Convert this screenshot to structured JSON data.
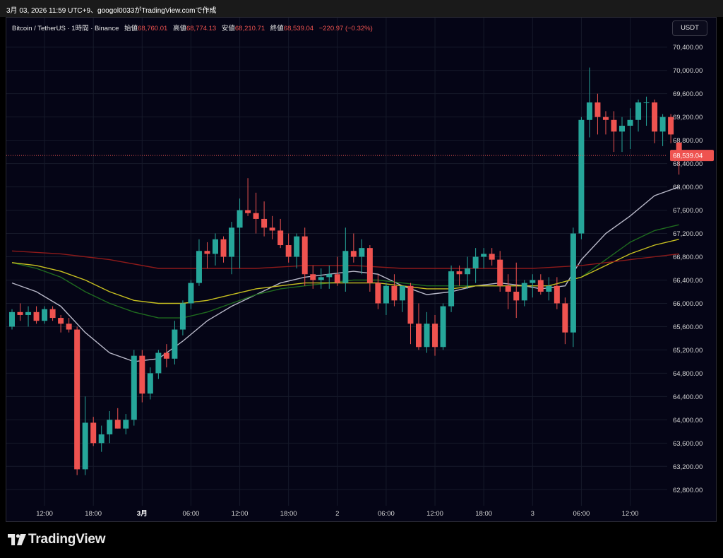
{
  "header": {
    "caption": "3月 03, 2026 11:59 UTC+9、googol0033がTradingView.comで作成"
  },
  "legend": {
    "symbol": "Bitcoin / TetherUS · 1時間 · Binance",
    "open_label": "始値",
    "open_value": "68,760.01",
    "high_label": "高値",
    "high_value": "68,774.13",
    "low_label": "安値",
    "low_value": "68,210.71",
    "close_label": "終値",
    "close_value": "68,539.04",
    "change": "−220.97 (−0.32%)"
  },
  "unit_button": "USDT",
  "footer": {
    "brand": "TradingView",
    "logo_icon": "tradingview-logo-icon"
  },
  "colors": {
    "up": "#26a69a",
    "down": "#ef5350",
    "ma_fast": "#b8b8c8",
    "ma_mid": "#1f6b1f",
    "ma_slow": "#c8c020",
    "ma_long": "#8e1a1a",
    "price_line": "#ef5350",
    "grid": "#161a2a"
  },
  "chart_data": {
    "type": "candlestick",
    "symbol": "Bitcoin / TetherUS",
    "interval": "1時間",
    "exchange": "Binance",
    "currency": "USDT",
    "ylim": [
      62500,
      70700
    ],
    "y_ticks": [
      "70,400.00",
      "70,000.00",
      "69,600.00",
      "69,200.00",
      "68,800.00",
      "68,400.00",
      "68,000.00",
      "67,600.00",
      "67,200.00",
      "66,800.00",
      "66,400.00",
      "66,000.00",
      "65,600.00",
      "65,200.00",
      "64,800.00",
      "64,400.00",
      "64,000.00",
      "63,600.00",
      "63,200.00",
      "62,800.00"
    ],
    "y_tick_values": [
      70400,
      70000,
      69600,
      69200,
      68800,
      68400,
      68000,
      67600,
      67200,
      66800,
      66400,
      66000,
      65600,
      65200,
      64800,
      64400,
      64000,
      63600,
      63200,
      62800
    ],
    "x_ticks": [
      {
        "label": "12:00",
        "index": 4,
        "bold": false
      },
      {
        "label": "18:00",
        "index": 10,
        "bold": false
      },
      {
        "label": "3月",
        "index": 16,
        "bold": true
      },
      {
        "label": "06:00",
        "index": 22,
        "bold": false
      },
      {
        "label": "12:00",
        "index": 28,
        "bold": false
      },
      {
        "label": "18:00",
        "index": 34,
        "bold": false
      },
      {
        "label": "2",
        "index": 40,
        "bold": false
      },
      {
        "label": "06:00",
        "index": 46,
        "bold": false
      },
      {
        "label": "12:00",
        "index": 52,
        "bold": false
      },
      {
        "label": "18:00",
        "index": 58,
        "bold": false
      },
      {
        "label": "3",
        "index": 64,
        "bold": false
      },
      {
        "label": "06:00",
        "index": 70,
        "bold": false
      },
      {
        "label": "12:00",
        "index": 76,
        "bold": false
      }
    ],
    "grid": true,
    "last_price": 68539.04,
    "last_price_label": "68,539.04",
    "candles": [
      [
        65600,
        65900,
        65550,
        65850
      ],
      [
        65850,
        66000,
        65700,
        65800
      ],
      [
        65800,
        65950,
        65600,
        65850
      ],
      [
        65850,
        65950,
        65650,
        65700
      ],
      [
        65700,
        65950,
        65650,
        65900
      ],
      [
        65900,
        65950,
        65700,
        65750
      ],
      [
        65750,
        65800,
        65500,
        65650
      ],
      [
        65650,
        65750,
        65500,
        65550
      ],
      [
        65550,
        65600,
        63050,
        63150
      ],
      [
        63150,
        64400,
        63050,
        63950
      ],
      [
        63950,
        64050,
        63550,
        63600
      ],
      [
        63600,
        63900,
        63450,
        63750
      ],
      [
        63750,
        64150,
        63600,
        64000
      ],
      [
        64000,
        64200,
        63850,
        63850
      ],
      [
        63850,
        64100,
        63750,
        64000
      ],
      [
        64000,
        65200,
        63900,
        65100
      ],
      [
        65100,
        65200,
        64300,
        64450
      ],
      [
        64450,
        64900,
        64350,
        64800
      ],
      [
        64800,
        65200,
        64700,
        65150
      ],
      [
        65150,
        65300,
        64900,
        65050
      ],
      [
        65050,
        65700,
        64950,
        65550
      ],
      [
        65550,
        66050,
        65450,
        66000
      ],
      [
        66000,
        66400,
        65900,
        66350
      ],
      [
        66350,
        67100,
        66300,
        66900
      ],
      [
        66900,
        67050,
        66600,
        66850
      ],
      [
        66850,
        67200,
        66650,
        67100
      ],
      [
        67100,
        67150,
        66700,
        66800
      ],
      [
        66800,
        67400,
        66500,
        67300
      ],
      [
        67300,
        67800,
        66600,
        67600
      ],
      [
        67600,
        68150,
        67500,
        67550
      ],
      [
        67550,
        67900,
        67200,
        67450
      ],
      [
        67450,
        67750,
        67150,
        67300
      ],
      [
        67300,
        67500,
        67100,
        67250
      ],
      [
        67250,
        67450,
        66950,
        67000
      ],
      [
        67000,
        67200,
        66700,
        66800
      ],
      [
        66800,
        67200,
        66600,
        67150
      ],
      [
        67150,
        67300,
        66300,
        66500
      ],
      [
        66500,
        66650,
        66250,
        66400
      ],
      [
        66400,
        66600,
        66250,
        66450
      ],
      [
        66450,
        66650,
        66250,
        66500
      ],
      [
        66500,
        66800,
        66300,
        66350
      ],
      [
        66350,
        67300,
        66200,
        66900
      ],
      [
        66900,
        67200,
        66700,
        66800
      ],
      [
        66800,
        67100,
        66500,
        66950
      ],
      [
        66950,
        67000,
        66200,
        66350
      ],
      [
        66350,
        66500,
        65900,
        66000
      ],
      [
        66000,
        66350,
        65800,
        66300
      ],
      [
        66300,
        66500,
        65950,
        66050
      ],
      [
        66050,
        66300,
        65850,
        66300
      ],
      [
        66300,
        66350,
        65300,
        65650
      ],
      [
        65650,
        66000,
        65200,
        65250
      ],
      [
        65250,
        65850,
        65150,
        65650
      ],
      [
        65650,
        65800,
        65100,
        65250
      ],
      [
        65250,
        66000,
        65200,
        65950
      ],
      [
        65950,
        66650,
        65850,
        66550
      ],
      [
        66550,
        66650,
        66300,
        66500
      ],
      [
        66500,
        66800,
        66250,
        66600
      ],
      [
        66600,
        66950,
        66350,
        66800
      ],
      [
        66800,
        66950,
        66600,
        66850
      ],
      [
        66850,
        66950,
        66650,
        66750
      ],
      [
        66750,
        66900,
        66200,
        66300
      ],
      [
        66300,
        66500,
        65900,
        66200
      ],
      [
        66200,
        66700,
        65750,
        66050
      ],
      [
        66050,
        66400,
        65950,
        66350
      ],
      [
        66350,
        66500,
        66100,
        66400
      ],
      [
        66400,
        66500,
        66150,
        66200
      ],
      [
        66200,
        66450,
        66050,
        66300
      ],
      [
        66300,
        66450,
        65900,
        66000
      ],
      [
        66000,
        66100,
        65300,
        65500
      ],
      [
        65500,
        67300,
        65250,
        67200
      ],
      [
        67200,
        69200,
        67100,
        69150
      ],
      [
        69150,
        70050,
        68850,
        69450
      ],
      [
        69450,
        69600,
        68900,
        69200
      ],
      [
        69200,
        69300,
        68900,
        69150
      ],
      [
        69150,
        69300,
        68600,
        68950
      ],
      [
        68950,
        69200,
        68600,
        69050
      ],
      [
        69050,
        69350,
        68650,
        69150
      ],
      [
        69150,
        69500,
        68950,
        69450
      ],
      [
        69450,
        69550,
        69050,
        69450
      ],
      [
        69450,
        69500,
        68750,
        68950
      ],
      [
        68950,
        69250,
        68700,
        69200
      ],
      [
        69200,
        69250,
        68750,
        68900
      ],
      [
        68760.01,
        68774.13,
        68210.71,
        68539.04
      ]
    ],
    "series": [
      {
        "color_key": "ma_fast",
        "values": [
          [
            0,
            66350
          ],
          [
            3,
            66200
          ],
          [
            6,
            65950
          ],
          [
            9,
            65500
          ],
          [
            12,
            65150
          ],
          [
            15,
            65000
          ],
          [
            18,
            65050
          ],
          [
            21,
            65350
          ],
          [
            24,
            65700
          ],
          [
            27,
            65950
          ],
          [
            30,
            66150
          ],
          [
            33,
            66350
          ],
          [
            36,
            66450
          ],
          [
            39,
            66500
          ],
          [
            42,
            66550
          ],
          [
            45,
            66500
          ],
          [
            48,
            66300
          ],
          [
            51,
            66150
          ],
          [
            54,
            66200
          ],
          [
            57,
            66300
          ],
          [
            60,
            66350
          ],
          [
            63,
            66300
          ],
          [
            65,
            66250
          ],
          [
            68,
            66300
          ],
          [
            70,
            66750
          ],
          [
            73,
            67200
          ],
          [
            76,
            67500
          ],
          [
            79,
            67850
          ],
          [
            82,
            68000
          ]
        ]
      },
      {
        "color_key": "ma_mid",
        "values": [
          [
            0,
            66700
          ],
          [
            3,
            66600
          ],
          [
            6,
            66450
          ],
          [
            9,
            66200
          ],
          [
            12,
            66000
          ],
          [
            15,
            65850
          ],
          [
            18,
            65750
          ],
          [
            21,
            65750
          ],
          [
            24,
            65850
          ],
          [
            27,
            66000
          ],
          [
            30,
            66150
          ],
          [
            33,
            66250
          ],
          [
            36,
            66300
          ],
          [
            39,
            66350
          ],
          [
            42,
            66400
          ],
          [
            45,
            66400
          ],
          [
            48,
            66350
          ],
          [
            51,
            66300
          ],
          [
            54,
            66300
          ],
          [
            57,
            66300
          ],
          [
            60,
            66300
          ],
          [
            63,
            66300
          ],
          [
            66,
            66300
          ],
          [
            70,
            66450
          ],
          [
            73,
            66750
          ],
          [
            76,
            67050
          ],
          [
            79,
            67250
          ],
          [
            82,
            67350
          ]
        ]
      },
      {
        "color_key": "ma_slow",
        "values": [
          [
            0,
            66700
          ],
          [
            3,
            66650
          ],
          [
            6,
            66550
          ],
          [
            9,
            66400
          ],
          [
            12,
            66200
          ],
          [
            15,
            66050
          ],
          [
            18,
            66000
          ],
          [
            21,
            66000
          ],
          [
            24,
            66050
          ],
          [
            27,
            66150
          ],
          [
            30,
            66250
          ],
          [
            33,
            66300
          ],
          [
            36,
            66350
          ],
          [
            39,
            66350
          ],
          [
            42,
            66350
          ],
          [
            45,
            66350
          ],
          [
            48,
            66300
          ],
          [
            51,
            66250
          ],
          [
            54,
            66250
          ],
          [
            57,
            66300
          ],
          [
            60,
            66300
          ],
          [
            63,
            66300
          ],
          [
            66,
            66300
          ],
          [
            70,
            66450
          ],
          [
            73,
            66650
          ],
          [
            76,
            66850
          ],
          [
            79,
            67000
          ],
          [
            82,
            67100
          ]
        ]
      },
      {
        "color_key": "ma_long",
        "values": [
          [
            0,
            66900
          ],
          [
            6,
            66850
          ],
          [
            12,
            66750
          ],
          [
            18,
            66600
          ],
          [
            24,
            66600
          ],
          [
            30,
            66600
          ],
          [
            36,
            66650
          ],
          [
            42,
            66650
          ],
          [
            48,
            66600
          ],
          [
            54,
            66600
          ],
          [
            60,
            66600
          ],
          [
            64,
            66600
          ],
          [
            70,
            66650
          ],
          [
            76,
            66750
          ],
          [
            82,
            66850
          ]
        ]
      }
    ]
  }
}
